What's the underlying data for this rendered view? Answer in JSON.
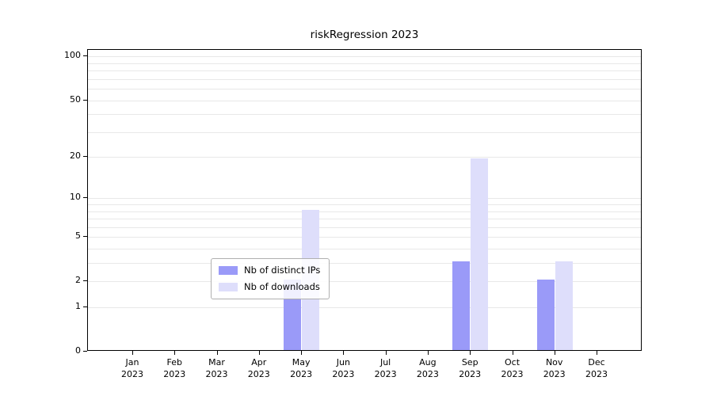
{
  "title": "riskRegression 2023",
  "chart_data": {
    "type": "bar",
    "title": "riskRegression 2023",
    "categories": [
      "Jan 2023",
      "Feb 2023",
      "Mar 2023",
      "Apr 2023",
      "May 2023",
      "Jun 2023",
      "Jul 2023",
      "Aug 2023",
      "Sep 2023",
      "Oct 2023",
      "Nov 2023",
      "Dec 2023"
    ],
    "series": [
      {
        "name": "Nb of distinct IPs",
        "color": "#9a9af8",
        "values": [
          0,
          0,
          0,
          0,
          2,
          0,
          0,
          0,
          3,
          0,
          2,
          0
        ]
      },
      {
        "name": "Nb of downloads",
        "color": "#dedefb",
        "values": [
          0,
          0,
          0,
          0,
          8,
          0,
          0,
          0,
          19,
          0,
          3,
          0
        ]
      }
    ],
    "xlabel": "",
    "ylabel": "",
    "yscale": "log10(value+1)",
    "ylim": [
      0,
      111
    ],
    "ytick_values": [
      0,
      1,
      2,
      5,
      10,
      20,
      50,
      100
    ],
    "ytick_labels": [
      "0",
      "1",
      "2",
      "5",
      "10",
      "20",
      "50",
      "100"
    ],
    "minor_gridline_values": [
      1,
      2,
      3,
      4,
      5,
      6,
      7,
      8,
      9,
      10,
      20,
      30,
      40,
      50,
      60,
      70,
      80,
      90,
      100
    ],
    "grid": "horizontal minor gridlines, light gray",
    "legend_position": "inside bottom-center"
  },
  "colors": {
    "distinct_ips": "#9a9af8",
    "downloads": "#dedefb",
    "gridline": "#e8e8e8",
    "axis": "#000000",
    "background": "#ffffff"
  }
}
